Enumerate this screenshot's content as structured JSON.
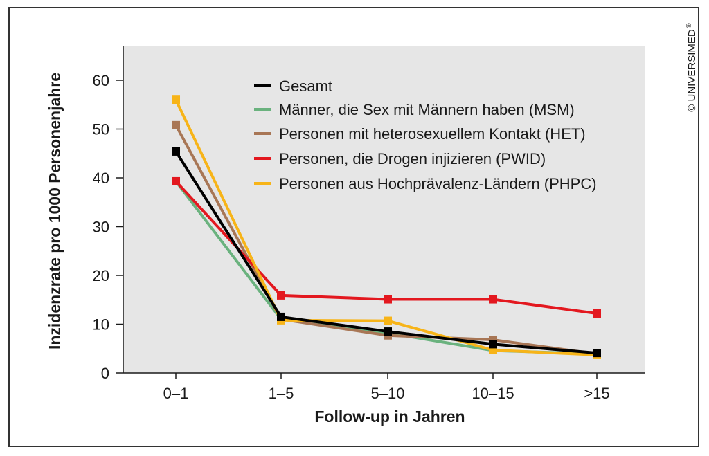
{
  "copyright": "© UNIVERSIMED",
  "copyright_mark": "®",
  "chart_data": {
    "type": "line",
    "title": "",
    "xlabel": "Follow-up in Jahren",
    "ylabel": "Inzidenzrate pro 1000 Personenjahre",
    "categories": [
      "0–1",
      "1–5",
      "5–10",
      "10–15",
      ">15"
    ],
    "ylim": [
      0,
      65
    ],
    "yticks": [
      0,
      10,
      20,
      30,
      40,
      50,
      60
    ],
    "ytick_labels": [
      "0",
      "10",
      "20",
      "30",
      "40",
      "50",
      "60"
    ],
    "grid": false,
    "legend_position": "top-right",
    "plot_background": "#e6e6e6",
    "series": [
      {
        "name": "Gesamt",
        "color": "#000000",
        "values": [
          45.4,
          11.5,
          8.5,
          5.9,
          4.1
        ]
      },
      {
        "name": "Männer, die Sex mit Männern haben (MSM)",
        "color": "#6ab27e",
        "values": [
          39.3,
          11.0,
          8.2,
          4.6,
          3.9
        ]
      },
      {
        "name": "Personen mit heterosexuellem Kontakt (HET)",
        "color": "#a87655",
        "values": [
          50.8,
          11.0,
          7.7,
          6.8,
          3.9
        ]
      },
      {
        "name": "Personen, die Drogen injizieren (PWID)",
        "color": "#e3181f",
        "values": [
          39.3,
          15.9,
          15.1,
          15.1,
          12.2
        ]
      },
      {
        "name": "Personen aus Hochprävalenz-Ländern (PHPC)",
        "color": "#f7b418",
        "values": [
          56.0,
          10.8,
          10.7,
          4.7,
          3.7
        ]
      }
    ]
  }
}
